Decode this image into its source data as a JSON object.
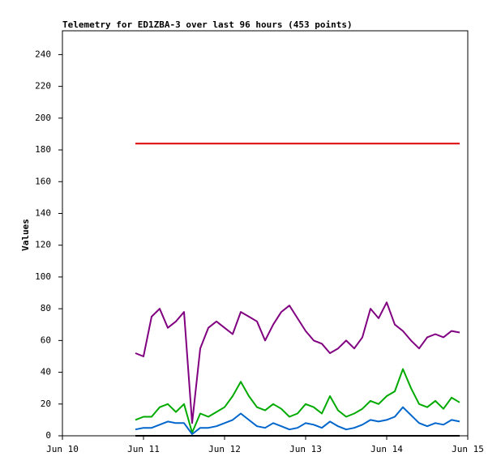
{
  "chart_data": {
    "type": "line",
    "title": "Telemetry for ED1ZBA-3 over last 96 hours (453 points)",
    "y_label": "Values",
    "x": [
      10.9,
      11.0,
      11.1,
      11.2,
      11.3,
      11.4,
      11.5,
      11.6,
      11.7,
      11.8,
      11.9,
      12.0,
      12.1,
      12.2,
      12.3,
      12.4,
      12.5,
      12.6,
      12.7,
      12.8,
      12.9,
      13.0,
      13.1,
      13.2,
      13.3,
      13.4,
      13.5,
      13.6,
      13.7,
      13.8,
      13.9,
      14.0,
      14.1,
      14.2,
      14.3,
      14.4,
      14.5,
      14.6,
      14.7,
      14.8,
      14.9
    ],
    "series": [
      {
        "color": "#dd0000",
        "values": [
          184,
          184,
          184,
          184,
          184,
          184,
          184,
          184,
          184,
          184,
          184,
          184,
          184,
          184,
          184,
          184,
          184,
          184,
          184,
          184,
          184,
          184,
          184,
          184,
          184,
          184,
          184,
          184,
          184,
          184,
          184,
          184,
          184,
          184,
          184,
          184,
          184,
          184,
          184,
          184,
          184
        ]
      },
      {
        "color": "#800080",
        "values": [
          52,
          50,
          75,
          80,
          68,
          72,
          78,
          8,
          55,
          68,
          72,
          68,
          64,
          78,
          75,
          72,
          60,
          70,
          78,
          82,
          74,
          66,
          60,
          58,
          52,
          55,
          60,
          55,
          62,
          80,
          74,
          84,
          70,
          66,
          60,
          55,
          62,
          64,
          62,
          66,
          65
        ]
      },
      {
        "color": "#00aa00",
        "values": [
          10,
          12,
          12,
          18,
          20,
          15,
          20,
          2,
          14,
          12,
          15,
          18,
          25,
          34,
          25,
          18,
          16,
          20,
          17,
          12,
          14,
          20,
          18,
          14,
          25,
          16,
          12,
          14,
          17,
          22,
          20,
          25,
          28,
          42,
          30,
          20,
          18,
          22,
          17,
          24,
          21
        ]
      },
      {
        "color": "#0066cc",
        "values": [
          4,
          5,
          5,
          7,
          9,
          8,
          8,
          1,
          5,
          5,
          6,
          8,
          10,
          14,
          10,
          6,
          5,
          8,
          6,
          4,
          5,
          8,
          7,
          5,
          9,
          6,
          4,
          5,
          7,
          10,
          9,
          10,
          12,
          18,
          13,
          8,
          6,
          8,
          7,
          10,
          9
        ]
      },
      {
        "color": "#000000",
        "values": [
          0,
          0,
          0,
          0,
          0,
          0,
          0,
          0,
          0,
          0,
          0,
          0,
          0,
          0,
          0,
          0,
          0,
          0,
          0,
          0,
          0,
          0,
          0,
          0,
          0,
          0,
          0,
          0,
          0,
          0,
          0,
          0,
          0,
          0,
          0,
          0,
          0,
          0,
          0,
          0,
          0
        ]
      }
    ],
    "xlim": [
      10,
      15
    ],
    "xticks": [
      {
        "value": 10,
        "label": "Jun 10"
      },
      {
        "value": 11,
        "label": "Jun 11"
      },
      {
        "value": 12,
        "label": "Jun 12"
      },
      {
        "value": 13,
        "label": "Jun 13"
      },
      {
        "value": 14,
        "label": "Jun 14"
      },
      {
        "value": 15,
        "label": "Jun 15"
      }
    ],
    "ylim": [
      0,
      255
    ],
    "yticks": [
      0,
      20,
      40,
      60,
      80,
      100,
      120,
      140,
      160,
      180,
      200,
      220,
      240
    ]
  }
}
